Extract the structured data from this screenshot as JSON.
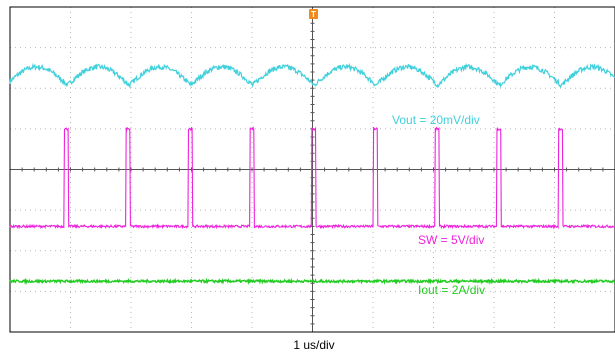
{
  "chart_data": {
    "type": "line",
    "title": "",
    "xlabel": "1 us/div",
    "ylabel": "",
    "grid": true,
    "x_divisions": 10,
    "y_divisions": 8,
    "xlim": [
      0,
      10
    ],
    "ylim": [
      0,
      8
    ],
    "trigger_marker": "T",
    "series": [
      {
        "name": "Vout = 20mV/div",
        "color": "#3fd0dc",
        "baseline_div": 6.3,
        "ripple_amplitude_div": 0.45,
        "period_us": 1.02,
        "first_cusp_us": 0.95
      },
      {
        "name": "SW = 5V/div",
        "color": "#ee22dd",
        "low_level_div": 2.6,
        "high_level_div": 5.0,
        "period_us": 1.02,
        "pulse_width_us": 0.07,
        "first_pulse_us": 0.9
      },
      {
        "name": "Iout = 2A/div",
        "color": "#22cc22",
        "level_div": 1.25
      }
    ]
  },
  "colors": {
    "grid": "#b8b8b8",
    "frame": "#000000",
    "trigger": "#f08a1c"
  }
}
